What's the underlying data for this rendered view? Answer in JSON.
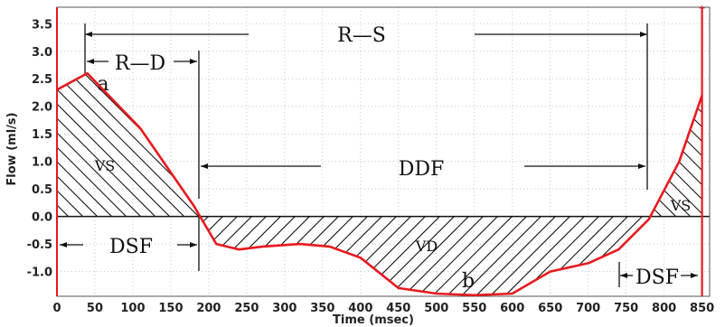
{
  "chart_data": {
    "type": "line",
    "xlabel": "Time (msec)",
    "ylabel": "Flow (ml/s)",
    "xlim": [
      0,
      860
    ],
    "ylim": [
      -1.45,
      3.8
    ],
    "xticks": [
      0,
      50,
      100,
      150,
      200,
      250,
      300,
      350,
      400,
      450,
      500,
      550,
      600,
      650,
      700,
      750,
      800,
      850
    ],
    "yticks": [
      -1.0,
      -0.5,
      0.0,
      0.5,
      1.0,
      1.5,
      2.0,
      2.5,
      3.0,
      3.5
    ],
    "ytick_labels": [
      "-1.0",
      "-0.5",
      "0.0",
      "0.5",
      "1.0",
      "1.5",
      "2.0",
      "2.5",
      "3.0",
      "3.5"
    ],
    "grid": true,
    "line_color": "#e8191e",
    "series": [
      {
        "x": [
          0,
          40,
          110,
          150,
          180,
          210,
          240,
          270,
          320,
          360,
          400,
          450,
          500,
          550,
          600,
          650,
          700,
          740,
          780,
          820,
          850
        ],
        "y": [
          2.3,
          2.6,
          1.6,
          0.8,
          0.2,
          -0.5,
          -0.6,
          -0.55,
          -0.5,
          -0.55,
          -0.75,
          -1.3,
          -1.4,
          -1.43,
          -1.4,
          -1.0,
          -0.85,
          -0.6,
          -0.05,
          1.0,
          2.2
        ]
      }
    ],
    "vertical_marker": {
      "x": 850
    },
    "annotations": {
      "rs": "R—S",
      "rd": "R—D",
      "ddf": "DDF",
      "dsf_left": "DSF",
      "dsf_right": "DSF",
      "vs_left": "VS",
      "vs_right": "VS",
      "vd": "VD",
      "point_a": "a",
      "point_b": "b"
    }
  }
}
